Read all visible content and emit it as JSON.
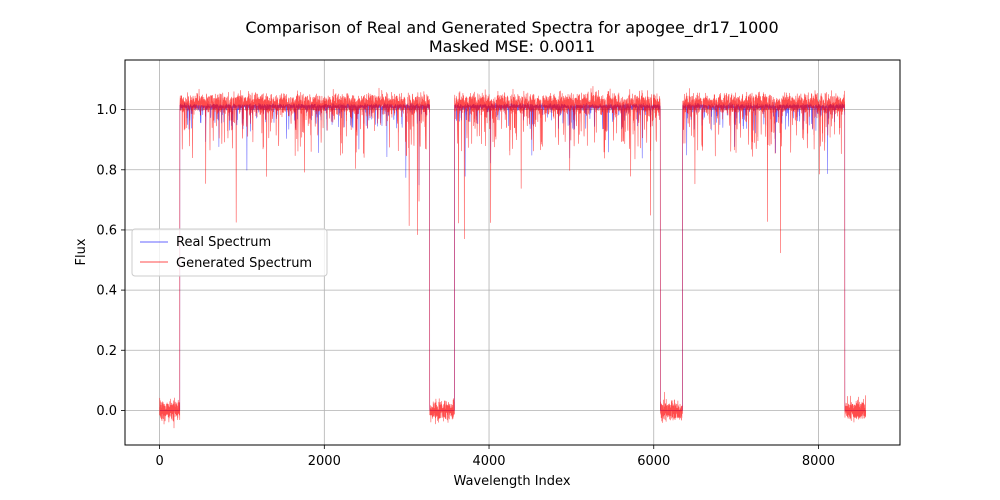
{
  "chart_data": {
    "type": "line",
    "title": "Comparison of Real and Generated Spectra for apogee_dr17_1000",
    "subtitle": "Masked MSE: 0.0011",
    "xlabel": "Wavelength Index",
    "ylabel": "Flux",
    "xlim": [
      -420,
      8990
    ],
    "ylim": [
      -0.115,
      1.165
    ],
    "x_ticks": [
      0,
      2000,
      4000,
      6000,
      8000
    ],
    "x_tick_labels": [
      "0",
      "2000",
      "4000",
      "6000",
      "8000"
    ],
    "y_ticks": [
      0.0,
      0.2,
      0.4,
      0.6,
      0.8,
      1.0
    ],
    "y_tick_labels": [
      "0.0",
      "0.2",
      "0.4",
      "0.6",
      "0.8",
      "1.0"
    ],
    "grid": true,
    "legend_position": "center-left",
    "total_points": 8575,
    "masked_ranges": [
      [
        0,
        245
      ],
      [
        3280,
        3580
      ],
      [
        6080,
        6350
      ],
      [
        8320,
        8575
      ]
    ],
    "series": [
      {
        "name": "Real Spectrum",
        "color": "#0000ff",
        "opacity": 0.6,
        "continuum": 1.01,
        "masked_value": 0.0,
        "absorption_lines": [
          {
            "x": 560,
            "y": 0.9
          },
          {
            "x": 720,
            "y": 0.88
          },
          {
            "x": 1060,
            "y": 0.8
          },
          {
            "x": 1540,
            "y": 0.9
          },
          {
            "x": 1930,
            "y": 0.86
          },
          {
            "x": 2420,
            "y": 0.87
          },
          {
            "x": 2760,
            "y": 0.84
          },
          {
            "x": 2990,
            "y": 0.78
          },
          {
            "x": 3150,
            "y": 0.75
          },
          {
            "x": 3710,
            "y": 0.78
          },
          {
            "x": 4020,
            "y": 0.82
          },
          {
            "x": 4520,
            "y": 0.85
          },
          {
            "x": 4980,
            "y": 0.84
          },
          {
            "x": 5450,
            "y": 0.86
          },
          {
            "x": 5860,
            "y": 0.84
          },
          {
            "x": 6400,
            "y": 0.85
          },
          {
            "x": 6980,
            "y": 0.87
          },
          {
            "x": 7480,
            "y": 0.86
          },
          {
            "x": 7950,
            "y": 0.98
          },
          {
            "x": 8110,
            "y": 0.79
          }
        ]
      },
      {
        "name": "Generated Spectrum",
        "color": "#ff0000",
        "opacity": 0.7,
        "continuum": 1.02,
        "masked_value": 0.0,
        "absorption_lines": [
          {
            "x": 560,
            "y": 0.78
          },
          {
            "x": 930,
            "y": 0.62
          },
          {
            "x": 1300,
            "y": 0.8
          },
          {
            "x": 1760,
            "y": 0.82
          },
          {
            "x": 2380,
            "y": 0.79
          },
          {
            "x": 3030,
            "y": 0.59
          },
          {
            "x": 3130,
            "y": 0.58
          },
          {
            "x": 3150,
            "y": 0.68
          },
          {
            "x": 3630,
            "y": 0.6
          },
          {
            "x": 3700,
            "y": 0.57
          },
          {
            "x": 4020,
            "y": 0.65
          },
          {
            "x": 4390,
            "y": 0.73
          },
          {
            "x": 4980,
            "y": 0.78
          },
          {
            "x": 5720,
            "y": 0.77
          },
          {
            "x": 5960,
            "y": 0.66
          },
          {
            "x": 6500,
            "y": 0.77
          },
          {
            "x": 7380,
            "y": 0.63
          },
          {
            "x": 7540,
            "y": 0.55
          },
          {
            "x": 8010,
            "y": 0.8
          }
        ]
      }
    ]
  }
}
